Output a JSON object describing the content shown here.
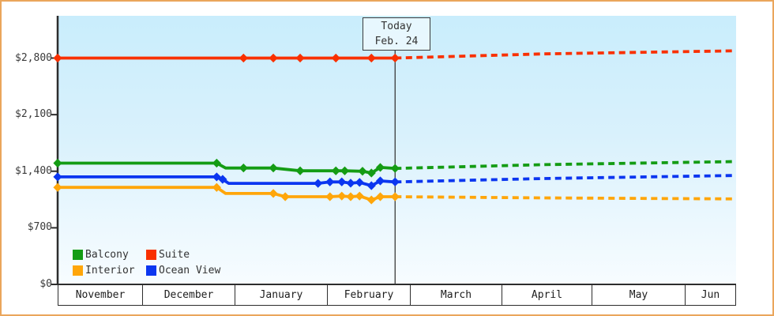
{
  "chart_data": {
    "type": "line",
    "today": {
      "label": "Today",
      "date": "Feb. 24"
    },
    "y_axis": {
      "ticks": [
        {
          "label": "$0",
          "value": 0
        },
        {
          "label": "$700",
          "value": 700
        },
        {
          "label": "$1,400",
          "value": 1400
        },
        {
          "label": "$2,100",
          "value": 2100
        },
        {
          "label": "$2,800",
          "value": 2800
        }
      ],
      "range": [
        0,
        3320
      ]
    },
    "x_axis": {
      "months": [
        "November",
        "December",
        "January",
        "February",
        "March",
        "April",
        "May",
        "Jun"
      ],
      "month_start_days": [
        0,
        30,
        61,
        92,
        120,
        151,
        181,
        212
      ],
      "visible_days": 229
    },
    "today_day": 115,
    "series": [
      {
        "name": "Suite",
        "color": "#f93000",
        "history": [
          [
            0,
            2800,
            1
          ],
          [
            55,
            2800,
            0
          ],
          [
            64,
            2800,
            1
          ],
          [
            74,
            2800,
            1
          ],
          [
            83,
            2800,
            1
          ],
          [
            95,
            2800,
            1
          ],
          [
            107,
            2800,
            1
          ],
          [
            115,
            2800,
            1
          ]
        ],
        "forecast": [
          [
            115,
            2800
          ],
          [
            165,
            2852
          ],
          [
            229,
            2890
          ]
        ]
      },
      {
        "name": "Balcony",
        "color": "#149c14",
        "history": [
          [
            0,
            1500,
            1
          ],
          [
            55,
            1500,
            1
          ],
          [
            58,
            1440,
            0
          ],
          [
            64,
            1440,
            1
          ],
          [
            74,
            1440,
            1
          ],
          [
            83,
            1405,
            1
          ],
          [
            95,
            1405,
            1
          ],
          [
            98,
            1405,
            1
          ],
          [
            104,
            1400,
            1
          ],
          [
            107,
            1378,
            1
          ],
          [
            110,
            1447,
            1
          ],
          [
            115,
            1435,
            1
          ]
        ],
        "forecast": [
          [
            115,
            1435
          ],
          [
            165,
            1482
          ],
          [
            229,
            1520
          ]
        ]
      },
      {
        "name": "Interior",
        "color": "#ffa60a",
        "history": [
          [
            0,
            1200,
            1
          ],
          [
            55,
            1200,
            1
          ],
          [
            58,
            1125,
            0
          ],
          [
            74,
            1125,
            1
          ],
          [
            78,
            1085,
            1
          ],
          [
            93,
            1085,
            1
          ],
          [
            97,
            1093,
            1
          ],
          [
            100,
            1085,
            1
          ],
          [
            103,
            1093,
            1
          ],
          [
            107,
            1045,
            1
          ],
          [
            110,
            1085,
            1
          ],
          [
            115,
            1085,
            1
          ]
        ],
        "forecast": [
          [
            115,
            1085
          ],
          [
            165,
            1070
          ],
          [
            229,
            1057
          ]
        ]
      },
      {
        "name": "Ocean View",
        "color": "#0b36f0",
        "history": [
          [
            0,
            1330,
            1
          ],
          [
            55,
            1330,
            1
          ],
          [
            57,
            1300,
            1
          ],
          [
            59,
            1250,
            0
          ],
          [
            89,
            1250,
            1
          ],
          [
            93,
            1268,
            1
          ],
          [
            97,
            1268,
            1
          ],
          [
            100,
            1252,
            1
          ],
          [
            103,
            1262,
            1
          ],
          [
            107,
            1222,
            1
          ],
          [
            110,
            1280,
            1
          ],
          [
            115,
            1268,
            1
          ]
        ],
        "forecast": [
          [
            115,
            1268
          ],
          [
            165,
            1310
          ],
          [
            229,
            1348
          ]
        ]
      }
    ],
    "legend": [
      {
        "label": "Balcony",
        "color": "#149c14"
      },
      {
        "label": "Suite",
        "color": "#f93000"
      },
      {
        "label": "Interior",
        "color": "#ffa60a"
      },
      {
        "label": "Ocean View",
        "color": "#0b36f0"
      }
    ]
  },
  "frame": {
    "border_color": "#eaa65c",
    "axis_color": "#2d2d2d"
  }
}
